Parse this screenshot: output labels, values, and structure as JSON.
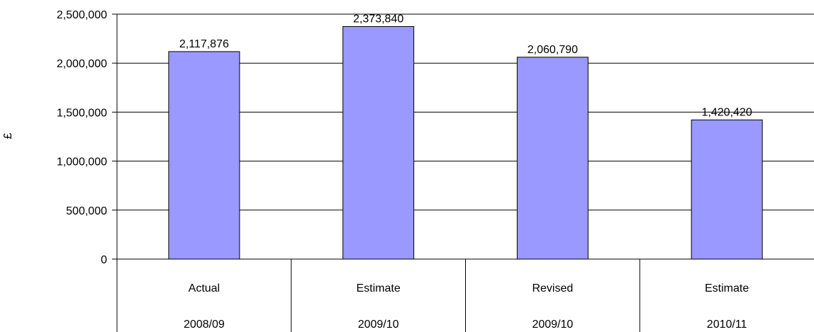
{
  "chart_data": {
    "type": "bar",
    "categories": [
      {
        "line1": "Actual",
        "line2": "2008/09"
      },
      {
        "line1": "Estimate",
        "line2": "2009/10"
      },
      {
        "line1": "Revised",
        "line2": "2009/10"
      },
      {
        "line1": "Estimate",
        "line2": "2010/11"
      }
    ],
    "values": [
      2117876,
      2373840,
      2060790,
      1420420
    ],
    "value_labels": [
      "2,117,876",
      "2,373,840",
      "2,060,790",
      "1,420,420"
    ],
    "ylabel": "£",
    "ylim": [
      0,
      2500000
    ],
    "yticks": [
      {
        "value": 0,
        "label": "0"
      },
      {
        "value": 500000,
        "label": "500,000"
      },
      {
        "value": 1000000,
        "label": "1,000,000"
      },
      {
        "value": 1500000,
        "label": "1,500,000"
      },
      {
        "value": 2000000,
        "label": "2,000,000"
      },
      {
        "value": 2500000,
        "label": "2,500,000"
      }
    ],
    "grid": true,
    "legend": "none",
    "colors": {
      "bar": "#9999ff",
      "bar_stroke": "#000000",
      "grid": "#000000"
    }
  }
}
